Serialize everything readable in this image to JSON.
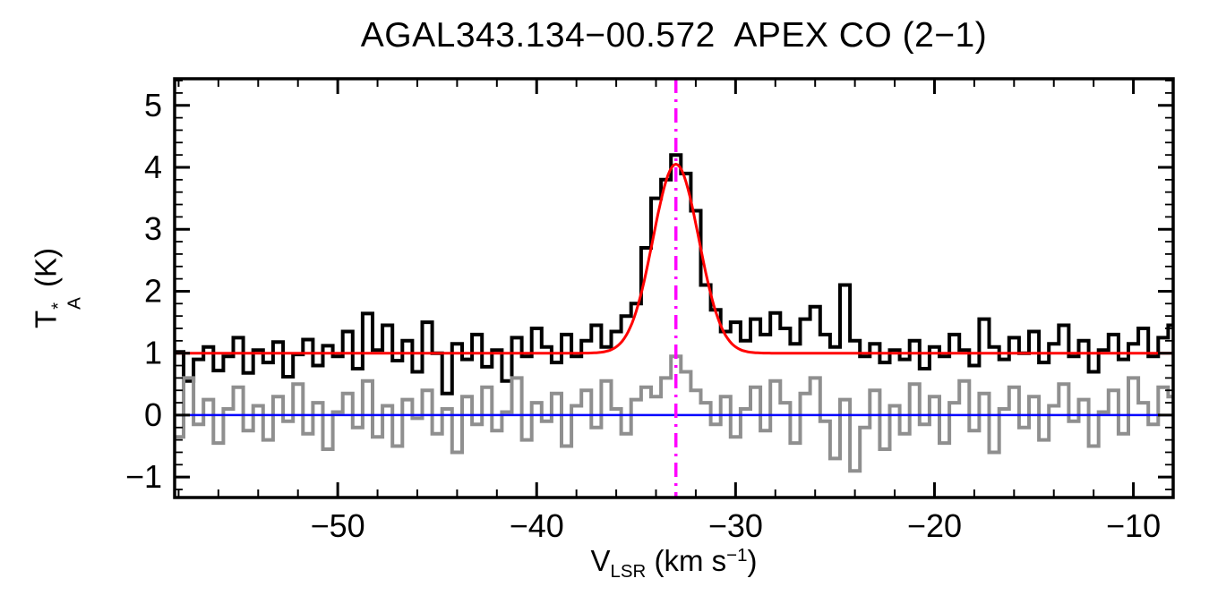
{
  "figure": {
    "background": "#ffffff",
    "frame_color": "#000000"
  },
  "axis_labels": {
    "y_base": "T",
    "y_sup": "*",
    "y_sub": "A",
    "y_unit": " (K)",
    "x_base": "V",
    "x_sub": "LSR",
    "x_unit_prefix": " (km s",
    "x_sup": "−1",
    "x_unit_suffix": ")"
  },
  "chart_data": {
    "type": "line",
    "title": "AGAL343.134−00.572  APEX CO (2−1)",
    "xlabel": "V_LSR (km s^-1)",
    "ylabel": "T_A^* (K)",
    "xlim": [
      -58.2,
      -8.0
    ],
    "ylim": [
      -1.33,
      5.43
    ],
    "grid": false,
    "legend": "none",
    "x_start": -58,
    "dx": 0.5,
    "x_tick_values": [
      -50,
      -40,
      -30,
      -20,
      -10
    ],
    "x_tick_labels": [
      "−50",
      "−40",
      "−30",
      "−20",
      "−10"
    ],
    "y_tick_values": [
      -1,
      0,
      1,
      2,
      3,
      4,
      5
    ],
    "y_tick_labels": [
      "−1",
      "0",
      "1",
      "2",
      "3",
      "4",
      "5"
    ],
    "minor_x_step": 2,
    "minor_y_step": 0.2,
    "series": [
      {
        "name": "spectrum",
        "style": "histogram",
        "color": "#000000",
        "values": [
          1.02,
          0.55,
          0.9,
          1.1,
          0.72,
          0.95,
          1.25,
          0.68,
          1.05,
          0.85,
          1.18,
          0.62,
          0.98,
          1.22,
          0.8,
          1.12,
          0.95,
          1.35,
          0.75,
          1.64,
          1.05,
          1.45,
          0.88,
          1.2,
          0.7,
          1.5,
          1.0,
          0.35,
          1.15,
          0.9,
          1.3,
          0.78,
          1.05,
          0.55,
          1.25,
          0.95,
          1.4,
          1.1,
          0.85,
          1.3,
          0.95,
          1.2,
          1.45,
          1.1,
          1.35,
          1.6,
          1.8,
          2.7,
          3.5,
          3.8,
          4.2,
          3.9,
          3.3,
          2.1,
          1.7,
          1.35,
          1.5,
          1.2,
          1.55,
          1.3,
          1.65,
          1.4,
          1.15,
          1.55,
          1.75,
          1.3,
          1.1,
          2.1,
          1.2,
          0.95,
          1.15,
          0.85,
          1.05,
          0.9,
          1.2,
          0.75,
          1.1,
          0.95,
          1.3,
          1.05,
          0.8,
          1.55,
          1.1,
          0.9,
          1.25,
          1.0,
          1.35,
          0.85,
          1.15,
          1.45,
          0.95,
          1.2,
          0.7,
          1.05,
          1.3,
          0.9,
          1.15,
          1.4,
          0.95,
          1.25,
          1.45
        ]
      },
      {
        "name": "residual",
        "style": "histogram",
        "color": "#8f8f8f",
        "values": [
          -0.35,
          0.6,
          -0.15,
          0.25,
          -0.45,
          0.1,
          0.45,
          -0.25,
          0.15,
          -0.4,
          0.3,
          -0.1,
          0.5,
          -0.3,
          0.2,
          -0.55,
          0.05,
          0.35,
          -0.2,
          0.55,
          -0.35,
          0.15,
          -0.5,
          0.25,
          -0.05,
          0.4,
          -0.3,
          0.1,
          -0.6,
          0.3,
          -0.15,
          0.45,
          -0.25,
          0.05,
          0.6,
          -0.4,
          0.2,
          -0.1,
          0.35,
          -0.5,
          0.15,
          0.4,
          -0.2,
          0.55,
          0.1,
          -0.3,
          0.25,
          0.45,
          0.3,
          0.6,
          0.95,
          0.7,
          0.4,
          0.2,
          -0.15,
          0.3,
          -0.35,
          0.1,
          0.45,
          -0.25,
          0.55,
          0.2,
          -0.45,
          0.35,
          0.6,
          -0.1,
          -0.7,
          0.25,
          -0.9,
          -0.2,
          0.4,
          -0.55,
          0.15,
          -0.3,
          0.5,
          -0.15,
          0.3,
          -0.45,
          0.2,
          0.55,
          -0.25,
          0.35,
          -0.6,
          0.1,
          0.45,
          -0.2,
          0.3,
          -0.4,
          0.15,
          0.5,
          -0.1,
          0.25,
          -0.5,
          0.05,
          0.4,
          -0.3,
          0.6,
          0.2,
          -0.15,
          0.45,
          0.3
        ]
      },
      {
        "name": "gaussian_fit",
        "style": "gaussian",
        "color": "#ff0000",
        "baseline": 1.0,
        "amplitude": 3.05,
        "center": -33.0,
        "sigma": 1.15
      },
      {
        "name": "zero_line",
        "style": "hline",
        "color": "#0000ff",
        "y": 0
      },
      {
        "name": "vlsr_marker",
        "style": "vline",
        "color": "#ff00ff",
        "x": -33.0,
        "dash": "dash-dot"
      }
    ]
  }
}
